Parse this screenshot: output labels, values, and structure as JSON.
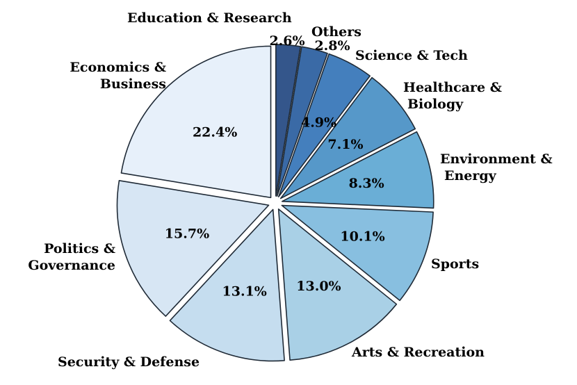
{
  "chart_data": {
    "type": "pie",
    "start_angle_deg": 90,
    "direction": "clockwise",
    "slices": [
      {
        "label": "Education & Research",
        "lines": [
          "Education & Research"
        ],
        "value": 2.6,
        "pct_label": "2.6%",
        "color": "#34568b"
      },
      {
        "label": "Others",
        "lines": [
          "Others"
        ],
        "value": 2.8,
        "pct_label": "2.8%",
        "color": "#3a6aa6"
      },
      {
        "label": "Science & Tech",
        "lines": [
          "Science & Tech"
        ],
        "value": 4.9,
        "pct_label": "4.9%",
        "color": "#447fbd"
      },
      {
        "label": "Healthcare & Biology",
        "lines": [
          "Healthcare &",
          "Biology"
        ],
        "value": 7.1,
        "pct_label": "7.1%",
        "color": "#5698c9"
      },
      {
        "label": "Environment & Energy",
        "lines": [
          "Environment &",
          "Energy"
        ],
        "value": 8.3,
        "pct_label": "8.3%",
        "color": "#6aaed6"
      },
      {
        "label": "Sports",
        "lines": [
          "Sports"
        ],
        "value": 10.1,
        "pct_label": "10.1%",
        "color": "#88bfe0"
      },
      {
        "label": "Arts & Recreation",
        "lines": [
          "Arts & Recreation"
        ],
        "value": 13.0,
        "pct_label": "13.0%",
        "color": "#a9d0e6"
      },
      {
        "label": "Security & Defense",
        "lines": [
          "Security & Defense"
        ],
        "value": 13.1,
        "pct_label": "13.1%",
        "color": "#c5ddef"
      },
      {
        "label": "Politics & Governance",
        "lines": [
          "Politics &",
          "Governance"
        ],
        "value": 15.7,
        "pct_label": "15.7%",
        "color": "#d7e6f4"
      },
      {
        "label": "Economics & Business",
        "lines": [
          "Economics &",
          "Business"
        ],
        "value": 22.4,
        "pct_label": "22.4%",
        "color": "#e7f0fa"
      }
    ]
  }
}
